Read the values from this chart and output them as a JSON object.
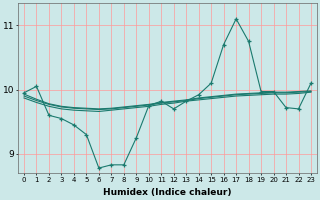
{
  "xlabel": "Humidex (Indice chaleur)",
  "bg_color": "#cce8e8",
  "grid_color": "#ff9999",
  "line_color": "#1a7a6e",
  "xlim": [
    -0.5,
    23.5
  ],
  "ylim": [
    8.7,
    11.35
  ],
  "yticks": [
    9,
    10,
    11
  ],
  "xticks": [
    0,
    1,
    2,
    3,
    4,
    5,
    6,
    7,
    8,
    9,
    10,
    11,
    12,
    13,
    14,
    15,
    16,
    17,
    18,
    19,
    20,
    21,
    22,
    23
  ],
  "y_main": [
    9.95,
    10.05,
    9.6,
    9.55,
    9.45,
    9.3,
    8.78,
    8.83,
    8.83,
    9.25,
    9.75,
    9.82,
    9.7,
    9.82,
    9.92,
    10.1,
    10.7,
    11.1,
    10.75,
    9.97,
    9.97,
    9.72,
    9.7,
    10.1
  ],
  "y_trend1": [
    9.93,
    9.85,
    9.78,
    9.74,
    9.72,
    9.71,
    9.7,
    9.71,
    9.73,
    9.75,
    9.77,
    9.8,
    9.82,
    9.84,
    9.87,
    9.89,
    9.91,
    9.93,
    9.94,
    9.95,
    9.96,
    9.96,
    9.97,
    9.98
  ],
  "y_trend2": [
    9.9,
    9.83,
    9.77,
    9.73,
    9.71,
    9.7,
    9.69,
    9.7,
    9.72,
    9.74,
    9.76,
    9.79,
    9.81,
    9.83,
    9.86,
    9.88,
    9.9,
    9.92,
    9.93,
    9.94,
    9.95,
    9.95,
    9.96,
    9.97
  ],
  "y_trend3": [
    9.87,
    9.8,
    9.74,
    9.7,
    9.68,
    9.67,
    9.66,
    9.68,
    9.7,
    9.72,
    9.74,
    9.77,
    9.79,
    9.82,
    9.84,
    9.86,
    9.88,
    9.9,
    9.91,
    9.92,
    9.93,
    9.93,
    9.94,
    9.96
  ]
}
